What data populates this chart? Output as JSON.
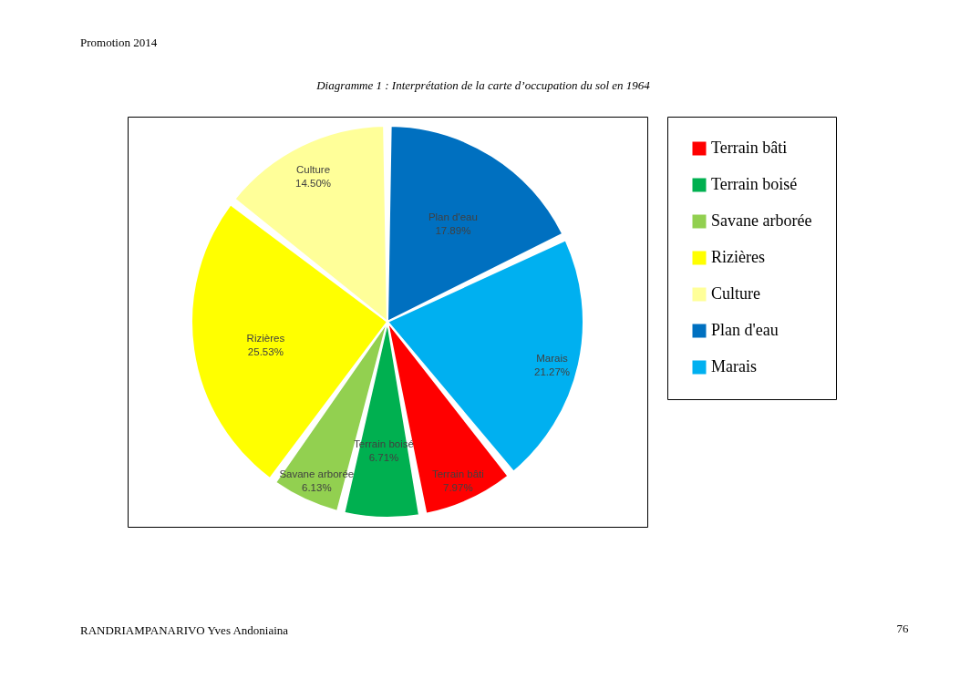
{
  "chart_data": {
    "type": "pie",
    "title": "Diagramme 1 : Interprétation de la carte d’occupation du sol en 1964",
    "categories": [
      "Terrain bâti",
      "Terrain boisé",
      "Savane arborée",
      "Rizières",
      "Culture",
      "Plan d'eau",
      "Marais"
    ],
    "values": [
      7.97,
      6.71,
      6.13,
      25.53,
      14.5,
      17.89,
      21.27
    ],
    "colors": [
      "#ff0000",
      "#00b050",
      "#92d050",
      "#ffff00",
      "#ffff99",
      "#0070c0",
      "#00b0f0"
    ],
    "value_labels": [
      "7.97%",
      "6.71%",
      "6.13%",
      "25.53%",
      "14.50%",
      "17.89%",
      "21.27%"
    ],
    "legend": "right",
    "annotations": [
      "Promotion 2014",
      "RANDRIAMPANARIVO Yves Andoniaina",
      "76"
    ]
  }
}
